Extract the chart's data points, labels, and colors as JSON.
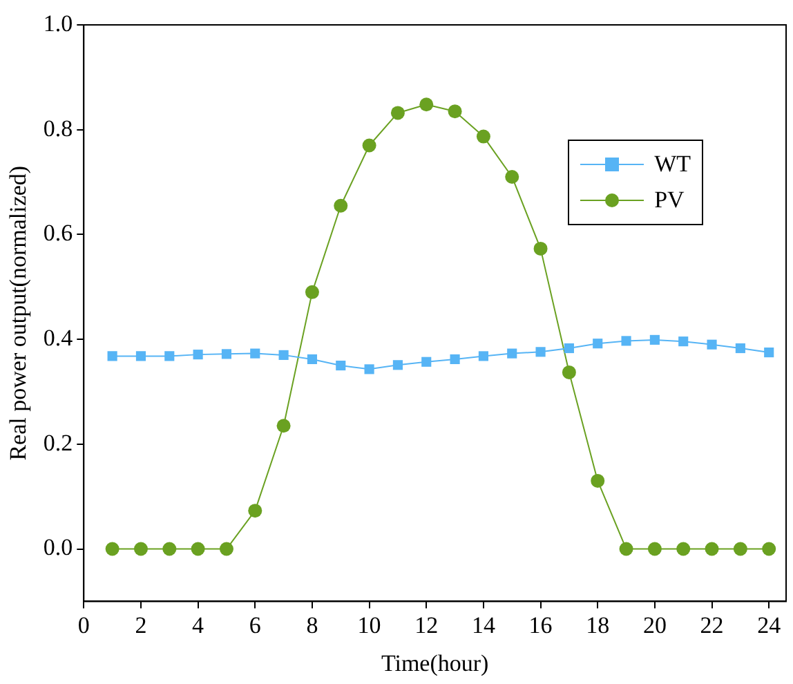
{
  "chart_data": {
    "type": "line",
    "xlabel": "Time(hour)",
    "ylabel": "Real power output(normalized)",
    "x": [
      1,
      2,
      3,
      4,
      5,
      6,
      7,
      8,
      9,
      10,
      11,
      12,
      13,
      14,
      15,
      16,
      17,
      18,
      19,
      20,
      21,
      22,
      23,
      24
    ],
    "xlim": [
      0,
      24.6
    ],
    "xticks": [
      0,
      2,
      4,
      6,
      8,
      10,
      12,
      14,
      16,
      18,
      20,
      22,
      24
    ],
    "ylim": [
      -0.1,
      1.0
    ],
    "yticks": [
      {
        "value": 0,
        "label": "0.0"
      },
      0.2,
      0.4,
      0.6,
      0.8,
      {
        "value": 1,
        "label": "1.0"
      }
    ],
    "grid": false,
    "legend": "top right",
    "line_style": "solid",
    "series": [
      {
        "name": "WT",
        "color": "#56b4f5",
        "marker": "square",
        "values": [
          0.368,
          0.368,
          0.368,
          0.371,
          0.372,
          0.373,
          0.37,
          0.362,
          0.35,
          0.343,
          0.351,
          0.357,
          0.362,
          0.368,
          0.373,
          0.376,
          0.383,
          0.392,
          0.397,
          0.399,
          0.396,
          0.39,
          0.383,
          0.375
        ]
      },
      {
        "name": "PV",
        "color": "#6aa121",
        "marker": "circle",
        "values": [
          0,
          0,
          0,
          0,
          0,
          0.073,
          0.235,
          0.49,
          0.655,
          0.77,
          0.832,
          0.848,
          0.835,
          0.787,
          0.71,
          0.573,
          0.337,
          0.13,
          0,
          0,
          0,
          0,
          0,
          0
        ]
      }
    ]
  }
}
